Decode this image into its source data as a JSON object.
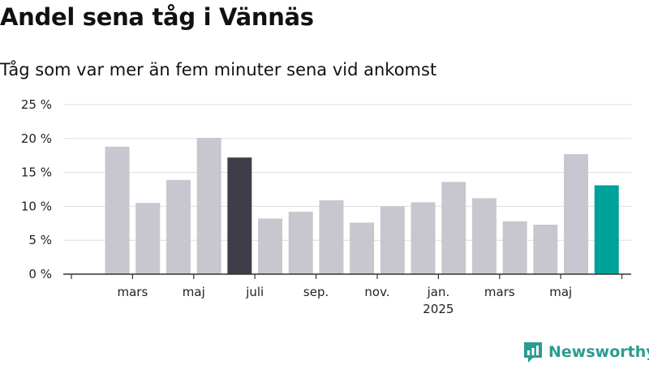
{
  "title": "Andel sena tåg i Vännäs",
  "subtitle": "Tåg som var mer än fem minuter sena vid ankomst",
  "brand": "Newsworthy",
  "colors": {
    "bar": "#c8c7d0",
    "highlight_dark": "#3f3d4a",
    "highlight_teal": "#00a19a",
    "brand": "#2a9d8f",
    "grid": "#dddddd"
  },
  "chart_data": {
    "type": "bar",
    "title": "Andel sena tåg i Vännäs",
    "subtitle": "Tåg som var mer än fem minuter sena vid ankomst",
    "xlabel": "",
    "ylabel": "",
    "ylim": [
      0,
      25
    ],
    "y_ticks": [
      0,
      5,
      10,
      15,
      20,
      25
    ],
    "y_tick_labels": [
      "0 %",
      "5 %",
      "10 %",
      "15 %",
      "20 %",
      "25 %"
    ],
    "x_tick_labels": [
      {
        "label": "mars",
        "sub": "",
        "month": "2024-03"
      },
      {
        "label": "maj",
        "sub": "",
        "month": "2024-05"
      },
      {
        "label": "juli",
        "sub": "",
        "month": "2024-07"
      },
      {
        "label": "sep.",
        "sub": "",
        "month": "2024-09"
      },
      {
        "label": "nov.",
        "sub": "",
        "month": "2024-11"
      },
      {
        "label": "jan.",
        "sub": "2025",
        "month": "2025-01"
      },
      {
        "label": "mars",
        "sub": "",
        "month": "2025-03"
      },
      {
        "label": "maj",
        "sub": "",
        "month": "2025-05"
      }
    ],
    "grid": true,
    "categories": [
      "2024-02",
      "2024-03",
      "2024-04",
      "2024-05",
      "2024-06",
      "2024-07",
      "2024-08",
      "2024-09",
      "2024-10",
      "2024-11",
      "2024-12",
      "2025-01",
      "2025-02",
      "2025-03",
      "2025-04",
      "2025-05",
      "2025-06"
    ],
    "values": [
      18.8,
      10.5,
      13.9,
      20.1,
      17.2,
      8.2,
      9.2,
      10.9,
      7.6,
      10.0,
      10.6,
      13.6,
      11.2,
      7.8,
      7.3,
      17.7,
      13.1
    ],
    "highlight": {
      "2024-06": "dark",
      "2025-06": "teal"
    }
  }
}
